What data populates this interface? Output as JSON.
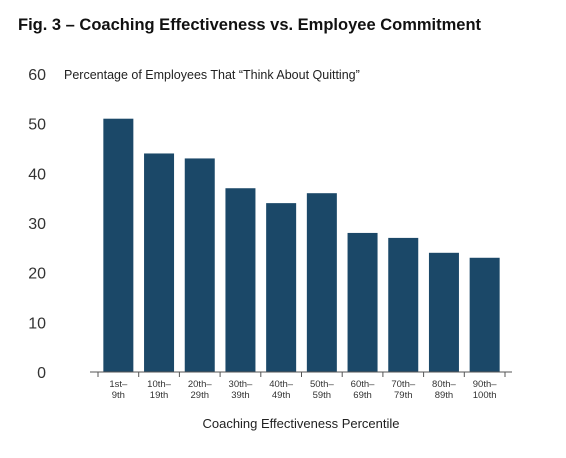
{
  "chart_data": {
    "type": "bar",
    "title": "Fig. 3 – Coaching Effectiveness vs. Employee Commitment",
    "subtitle": "Percentage of Employees That “Think About Quitting”",
    "xlabel": "Coaching Effectiveness Percentile",
    "ylabel": "",
    "ylim": [
      0,
      60
    ],
    "yticks": [
      0,
      10,
      20,
      30,
      40,
      50,
      60
    ],
    "grid": false,
    "categories": [
      [
        "1st–",
        "9th"
      ],
      [
        "10th–",
        "19th"
      ],
      [
        "20th–",
        "29th"
      ],
      [
        "30th–",
        "39th"
      ],
      [
        "40th–",
        "49th"
      ],
      [
        "50th–",
        "59th"
      ],
      [
        "60th–",
        "69th"
      ],
      [
        "70th–",
        "79th"
      ],
      [
        "80th–",
        "89th"
      ],
      [
        "90th–",
        "100th"
      ]
    ],
    "values": [
      51,
      44,
      43,
      37,
      34,
      36,
      28,
      27,
      24,
      23
    ],
    "bar_color": "#1b4868",
    "axis_color": "#555555"
  }
}
